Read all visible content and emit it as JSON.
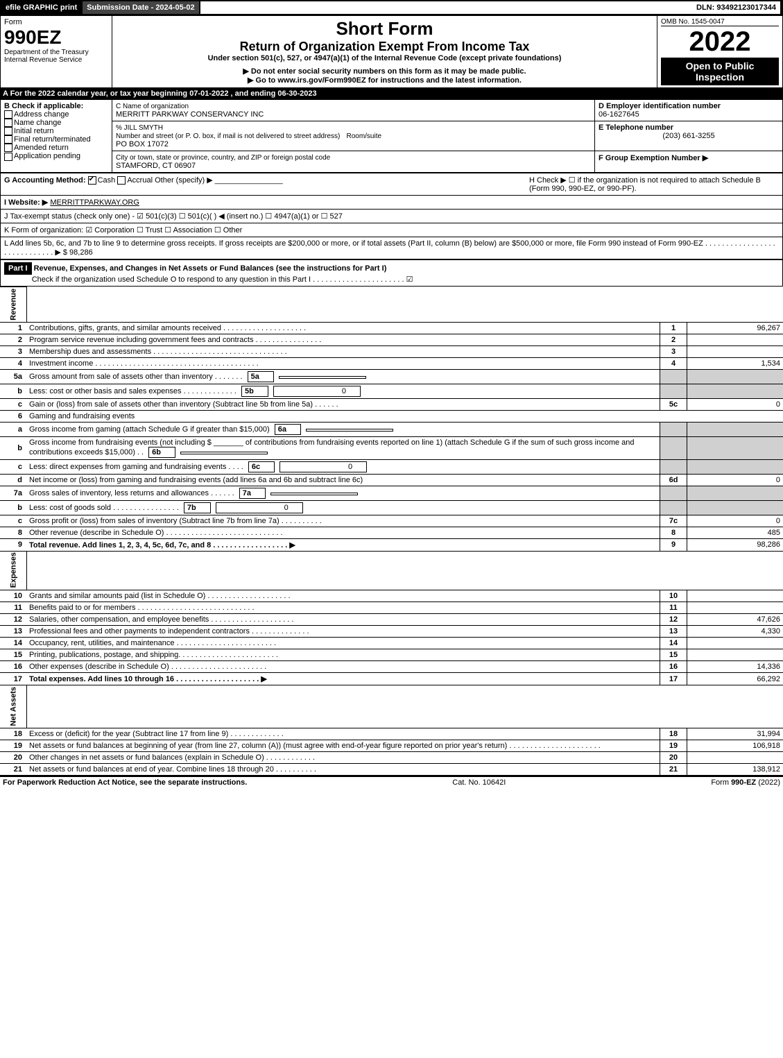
{
  "topbar": {
    "efile": "efile GRAPHIC print",
    "submission": "Submission Date - 2024-05-02",
    "dln": "DLN: 93492123017344"
  },
  "header": {
    "form": "Form",
    "form_num": "990EZ",
    "dept": "Department of the Treasury",
    "irs": "Internal Revenue Service",
    "short": "Short Form",
    "title": "Return of Organization Exempt From Income Tax",
    "under": "Under section 501(c), 527, or 4947(a)(1) of the Internal Revenue Code (except private foundations)",
    "ssn": "▶ Do not enter social security numbers on this form as it may be made public.",
    "goto": "▶ Go to www.irs.gov/Form990EZ for instructions and the latest information.",
    "omb": "OMB No. 1545-0047",
    "year": "2022",
    "open": "Open to Public Inspection"
  },
  "A": "A  For the 2022 calendar year, or tax year beginning 07-01-2022 , and ending 06-30-2023",
  "B": {
    "label": "B  Check if applicable:",
    "opts": [
      "Address change",
      "Name change",
      "Initial return",
      "Final return/terminated",
      "Amended return",
      "Application pending"
    ]
  },
  "C": {
    "label": "C Name of organization",
    "name": "MERRITT PARKWAY CONSERVANCY INC",
    "care": "% JILL SMYTH",
    "street_lbl": "Number and street (or P. O. box, if mail is not delivered to street address)",
    "room_lbl": "Room/suite",
    "street": "PO BOX 17072",
    "city_lbl": "City or town, state or province, country, and ZIP or foreign postal code",
    "city": "STAMFORD, CT  06907"
  },
  "D": {
    "label": "D Employer identification number",
    "val": "06-1627645"
  },
  "E": {
    "label": "E Telephone number",
    "val": "(203) 661-3255"
  },
  "F": {
    "label": "F Group Exemption Number  ▶",
    "val": ""
  },
  "G": {
    "label": "G Accounting Method:",
    "cash": "Cash",
    "accrual": "Accrual",
    "other": "Other (specify) ▶"
  },
  "H": "H  Check ▶ ☐ if the organization is not required to attach Schedule B (Form 990, 990-EZ, or 990-PF).",
  "I": {
    "label": "I Website: ▶",
    "val": "MERRITTPARKWAY.ORG"
  },
  "J": "J Tax-exempt status (check only one) - ☑ 501(c)(3) ☐ 501(c)(  ) ◀ (insert no.) ☐ 4947(a)(1) or ☐ 527",
  "K": "K Form of organization:  ☑ Corporation  ☐ Trust  ☐ Association  ☐ Other",
  "L": "L Add lines 5b, 6c, and 7b to line 9 to determine gross receipts. If gross receipts are $200,000 or more, or if total assets (Part II, column (B) below) are $500,000 or more, file Form 990 instead of Form 990-EZ . . . . . . . . . . . . . . . . . . . . . . . . . . . . . ▶ $ 98,286",
  "part1": {
    "hdr": "Part I",
    "title": "Revenue, Expenses, and Changes in Net Assets or Fund Balances (see the instructions for Part I)",
    "check": "Check if the organization used Schedule O to respond to any question in this Part I . . . . . . . . . . . . . . . . . . . . . . ☑"
  },
  "sections": {
    "revenue": "Revenue",
    "expenses": "Expenses",
    "net": "Net Assets"
  },
  "lines": [
    {
      "n": "1",
      "d": "Contributions, gifts, grants, and similar amounts received . . . . . . . . . . . . . . . . . . . .",
      "rn": "1",
      "amt": "96,267"
    },
    {
      "n": "2",
      "d": "Program service revenue including government fees and contracts . . . . . . . . . . . . . . . .",
      "rn": "2",
      "amt": ""
    },
    {
      "n": "3",
      "d": "Membership dues and assessments . . . . . . . . . . . . . . . . . . . . . . . . . . . . . . . .",
      "rn": "3",
      "amt": ""
    },
    {
      "n": "4",
      "d": "Investment income . . . . . . . . . . . . . . . . . . . . . . . . . . . . . . . . . . . . . . .",
      "rn": "4",
      "amt": "1,534"
    },
    {
      "n": "5a",
      "d": "Gross amount from sale of assets other than inventory . . . . . . .",
      "sub": "5a",
      "subv": ""
    },
    {
      "n": "b",
      "d": "Less: cost or other basis and sales expenses . . . . . . . . . . . . .",
      "sub": "5b",
      "subv": "0"
    },
    {
      "n": "c",
      "d": "Gain or (loss) from sale of assets other than inventory (Subtract line 5b from line 5a) . . . . . .",
      "rn": "5c",
      "amt": "0"
    },
    {
      "n": "6",
      "d": "Gaming and fundraising events"
    },
    {
      "n": "a",
      "d": "Gross income from gaming (attach Schedule G if greater than $15,000)",
      "sub": "6a",
      "subv": ""
    },
    {
      "n": "b",
      "d": "Gross income from fundraising events (not including $ _______ of contributions from fundraising events reported on line 1) (attach Schedule G if the sum of such gross income and contributions exceeds $15,000)   . .",
      "sub": "6b",
      "subv": ""
    },
    {
      "n": "c",
      "d": "Less: direct expenses from gaming and fundraising events   . . . .",
      "sub": "6c",
      "subv": "0"
    },
    {
      "n": "d",
      "d": "Net income or (loss) from gaming and fundraising events (add lines 6a and 6b and subtract line 6c)",
      "rn": "6d",
      "amt": "0"
    },
    {
      "n": "7a",
      "d": "Gross sales of inventory, less returns and allowances . . . . . .",
      "sub": "7a",
      "subv": ""
    },
    {
      "n": "b",
      "d": "Less: cost of goods sold    . . . . . . . . . . . . . . . .",
      "sub": "7b",
      "subv": "0"
    },
    {
      "n": "c",
      "d": "Gross profit or (loss) from sales of inventory (Subtract line 7b from line 7a) . . . . . . . . . .",
      "rn": "7c",
      "amt": "0"
    },
    {
      "n": "8",
      "d": "Other revenue (describe in Schedule O) . . . . . . . . . . . . . . . . . . . . . . . . . . . .",
      "rn": "8",
      "amt": "485"
    },
    {
      "n": "9",
      "d": "Total revenue. Add lines 1, 2, 3, 4, 5c, 6d, 7c, and 8  . . . . . . . . . . . . . . . . . .  ▶",
      "rn": "9",
      "amt": "98,286",
      "bold": true
    }
  ],
  "exp": [
    {
      "n": "10",
      "d": "Grants and similar amounts paid (list in Schedule O) . . . . . . . . . . . . . . . . . . . .",
      "rn": "10",
      "amt": ""
    },
    {
      "n": "11",
      "d": "Benefits paid to or for members   . . . . . . . . . . . . . . . . . . . . . . . . . . . .",
      "rn": "11",
      "amt": ""
    },
    {
      "n": "12",
      "d": "Salaries, other compensation, and employee benefits . . . . . . . . . . . . . . . . . . . .",
      "rn": "12",
      "amt": "47,626"
    },
    {
      "n": "13",
      "d": "Professional fees and other payments to independent contractors . . . . . . . . . . . . . .",
      "rn": "13",
      "amt": "4,330"
    },
    {
      "n": "14",
      "d": "Occupancy, rent, utilities, and maintenance . . . . . . . . . . . . . . . . . . . . . . . .",
      "rn": "14",
      "amt": ""
    },
    {
      "n": "15",
      "d": "Printing, publications, postage, and shipping. . . . . . . . . . . . . . . . . . . . . . . .",
      "rn": "15",
      "amt": ""
    },
    {
      "n": "16",
      "d": "Other expenses (describe in Schedule O)   . . . . . . . . . . . . . . . . . . . . . . .",
      "rn": "16",
      "amt": "14,336"
    },
    {
      "n": "17",
      "d": "Total expenses. Add lines 10 through 16    . . . . . . . . . . . . . . . . . . . .  ▶",
      "rn": "17",
      "amt": "66,292",
      "bold": true
    }
  ],
  "net": [
    {
      "n": "18",
      "d": "Excess or (deficit) for the year (Subtract line 17 from line 9)     . . . . . . . . . . . . .",
      "rn": "18",
      "amt": "31,994"
    },
    {
      "n": "19",
      "d": "Net assets or fund balances at beginning of year (from line 27, column (A)) (must agree with end-of-year figure reported on prior year's return) . . . . . . . . . . . . . . . . . . . . . .",
      "rn": "19",
      "amt": "106,918"
    },
    {
      "n": "20",
      "d": "Other changes in net assets or fund balances (explain in Schedule O) . . . . . . . . . . . .",
      "rn": "20",
      "amt": ""
    },
    {
      "n": "21",
      "d": "Net assets or fund balances at end of year. Combine lines 18 through 20 . . . . . . . . . .",
      "rn": "21",
      "amt": "138,912"
    }
  ],
  "footer": {
    "left": "For Paperwork Reduction Act Notice, see the separate instructions.",
    "mid": "Cat. No. 10642I",
    "right": "Form 990-EZ (2022)"
  }
}
